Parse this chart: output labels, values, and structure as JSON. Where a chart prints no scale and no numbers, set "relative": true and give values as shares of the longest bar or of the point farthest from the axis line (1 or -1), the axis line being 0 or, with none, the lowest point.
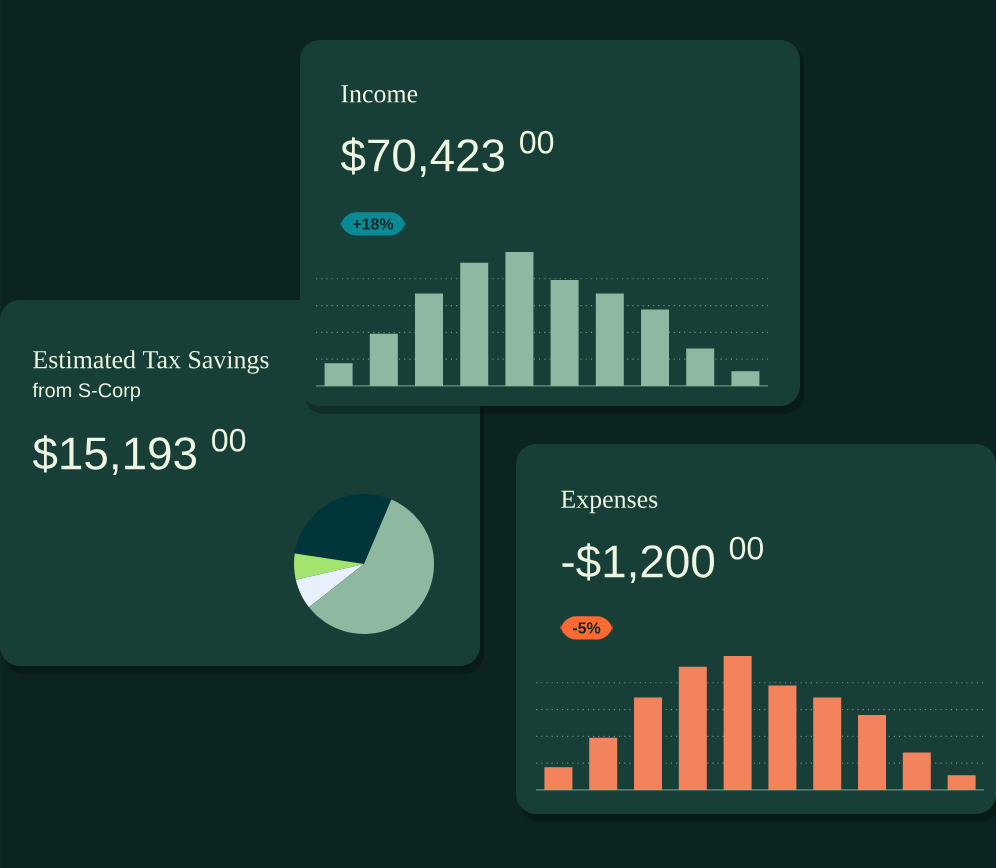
{
  "chart_data": [
    {
      "type": "bar",
      "title": "Income",
      "subtitle": "$70,423 $^{00}$",
      "annotations": [
        "+18%"
      ],
      "categories": [
        null,
        null,
        null,
        null,
        null,
        null,
        null,
        null,
        null,
        null
      ],
      "values": [
        0.17,
        0.39,
        0.69,
        0.92,
        1,
        0.79,
        0.69,
        0.57,
        0.28,
        0.11
      ],
      "relative": true,
      "color": "#8fb8a2",
      "grid": "y"
    },
    {
      "type": "pie",
      "title": "Estimated Tax Savings",
      "subtitle": "from S-Corp",
      "annotations": [
        "$15,193 $^{00}$"
      ],
      "categories": [
        null,
        null,
        null,
        null
      ],
      "values": [
        29,
        6,
        7,
        58
      ],
      "colors": [
        "#00363a",
        "#a3e46f",
        "#e8f0fb",
        "#8fb8a0"
      ]
    },
    {
      "type": "bar",
      "title": "Expenses",
      "subtitle": "-$1,200 $^{00}$",
      "annotations": [
        "-5%"
      ],
      "categories": [
        null,
        null,
        null,
        null,
        null,
        null,
        null,
        null,
        null,
        null
      ],
      "values": [
        0.17,
        0.39,
        0.69,
        0.92,
        1,
        0.78,
        0.69,
        0.56,
        0.28,
        0.11
      ],
      "relative": true,
      "color": "#f2835c",
      "grid": "y"
    }
  ]
}
